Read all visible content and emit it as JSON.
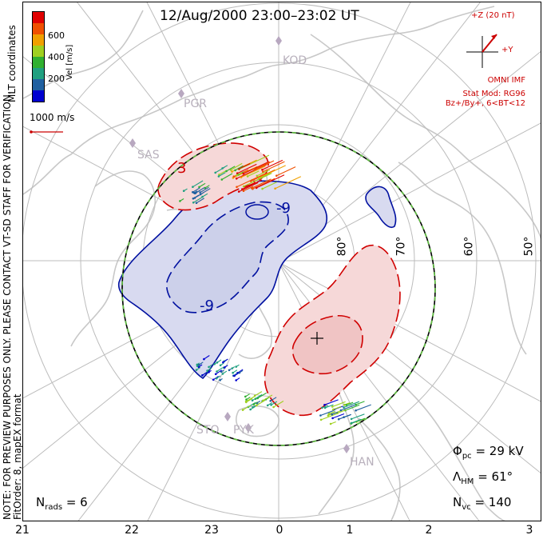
{
  "title": "12/Aug/2000 23:00–23:02 UT",
  "side_note": {
    "line1": "NOTE: FOR PREVIEW PURPOSES ONLY. PLEASE CONTACT VT-SD STAFF FOR VERIFICATION.",
    "line2": "FitOrder: 8, mapEX format"
  },
  "coordinate_label": "MLT coordinates",
  "velocity_legend": {
    "unit_label": "Vel [m/s]",
    "ticks": [
      "600",
      "400",
      "200"
    ],
    "colors": [
      "#e00000",
      "#f05000",
      "#f0a000",
      "#a0d020",
      "#30b030",
      "#20a080",
      "#2060a0",
      "#0000d0"
    ]
  },
  "scale_label": "1000 m/s",
  "latitude_labels": [
    "80°",
    "70°",
    "60°",
    "50°"
  ],
  "mlt_ticks": [
    "21",
    "22",
    "23",
    "0",
    "1",
    "2",
    "3"
  ],
  "stations": [
    "KOD",
    "PGR",
    "SAS",
    "STO",
    "PYK",
    "HAN"
  ],
  "contour_labels": [
    "3",
    "-9",
    "-9"
  ],
  "imf": {
    "bz_label": "+Z (20 nT)",
    "by_label": "+Y",
    "source": "OMNI IMF",
    "model": "Stat Mod: RG96",
    "condition": "Bz+/By+, 6<BT<12"
  },
  "stats": {
    "phi_symbol": "Φ",
    "phi_sub": "pc",
    "phi_value": "= 29 kV",
    "lambda_symbol": "Λ",
    "lambda_sub": "HM",
    "lambda_value": "= 61°",
    "nvc_symbol": "N",
    "nvc_sub": "vc",
    "nvc_value": "= 140",
    "nrads_symbol": "N",
    "nrads_sub": "rads",
    "nrads_value": "= 6"
  },
  "colors": {
    "negative_cell": "#0010a0",
    "negative_fill": "#d8daf0",
    "positive_cell": "#d00000",
    "positive_fill": "#f6d8d8",
    "hm_boundary_dash": "#60c040",
    "coastline": "#c8c8c8",
    "imf": "#cc0000"
  }
}
